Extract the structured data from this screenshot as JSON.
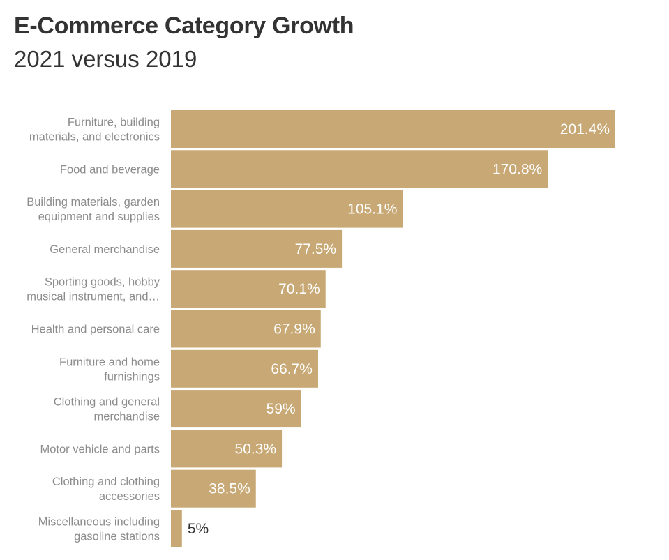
{
  "header": {
    "title": "E-Commerce Category Growth",
    "subtitle": "2021 versus 2019"
  },
  "chart_data": {
    "type": "bar",
    "orientation": "horizontal",
    "title": "E-Commerce Category Growth",
    "subtitle": "2021 versus 2019",
    "xlabel": "",
    "ylabel": "",
    "grid": false,
    "bar_color": "#c8a874",
    "categories": [
      [
        "Furniture, building",
        "materials, and electronics"
      ],
      [
        "Food and beverage"
      ],
      [
        "Building materials, garden",
        "equipment and supplies"
      ],
      [
        "General merchandise"
      ],
      [
        "Sporting goods, hobby",
        "musical instrument, and…"
      ],
      [
        "Health and personal care"
      ],
      [
        "Furniture and home",
        "furnishings"
      ],
      [
        "Clothing and general",
        "merchandise"
      ],
      [
        "Motor vehicle and parts"
      ],
      [
        "Clothing and clothing",
        "accessories"
      ],
      [
        "Miscellaneous including",
        "gasoline stations"
      ]
    ],
    "values": [
      201.4,
      170.8,
      105.1,
      77.5,
      70.1,
      67.9,
      66.7,
      59,
      50.3,
      38.5,
      5
    ],
    "value_labels": [
      "201.4%",
      "170.8%",
      "105.1%",
      "77.5%",
      "70.1%",
      "67.9%",
      "66.7%",
      "59%",
      "50.3%",
      "38.5%",
      "5%"
    ]
  }
}
